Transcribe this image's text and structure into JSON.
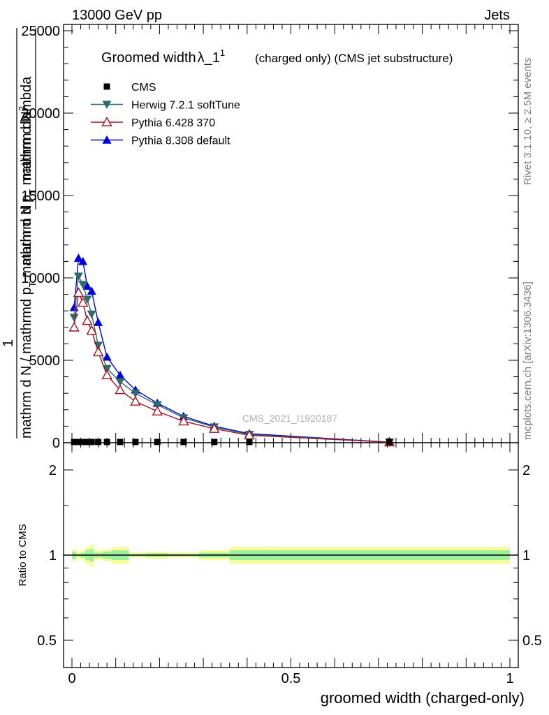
{
  "header": {
    "left": "13000 GeV pp",
    "right": "Jets"
  },
  "plot_title": {
    "main": "Groomed width",
    "lambda": "λ_1",
    "superscript": "1",
    "suffix": "(charged only) (CMS jet substructure)"
  },
  "side_text": {
    "rivet": "Rivet 3.1.10, ≥ 2.5M events",
    "mcplots": "mcplots.cern.ch [arXiv:1306.3436]"
  },
  "watermark": "CMS_2021_I1920187",
  "yaxis_main": {
    "frac_line1": "mathrm d",
    "frac_line1_b": "N",
    "frac_line1_sup": "2",
    "frac_line2": "mathrm d p",
    "frac_line2_sub": "T",
    "frac_line2_b": " mathrm d lambda",
    "outer_num": "1",
    "outer_den": "mathrm d N / mathrmd p",
    "outer_den_sub": "T",
    "outer_den_b": " mathrm d N",
    "ticks": [
      "0",
      "5000",
      "10000",
      "15000",
      "20000",
      "25000"
    ]
  },
  "yaxis_ratio": {
    "label": "Ratio to CMS",
    "ticks_left": [
      "0.5",
      "1",
      "2"
    ],
    "ticks_right": [
      "0.5",
      "1",
      "2"
    ]
  },
  "xaxis": {
    "label": "groomed width (charged-only)",
    "ticks": [
      "0",
      "0.5",
      "1"
    ]
  },
  "legend": [
    {
      "name": "CMS",
      "color": "#000000",
      "marker": "square"
    },
    {
      "name": "Herwig 7.2.1 softTune",
      "color": "#2e6b6b",
      "marker": "triangle-down"
    },
    {
      "name": "Pythia 6.428 370",
      "color": "#a01020",
      "marker": "triangle-open"
    },
    {
      "name": "Pythia 8.308 default",
      "color": "#0000dd",
      "marker": "triangle-up"
    }
  ],
  "chart_data": [
    {
      "type": "line",
      "xlim": [
        0,
        1
      ],
      "ylim": [
        0,
        25000
      ],
      "legend_placement": "top-left",
      "series": [
        {
          "name": "CMS",
          "x": [
            0.005,
            0.015,
            0.025,
            0.035,
            0.045,
            0.06,
            0.08,
            0.11,
            0.145,
            0.195,
            0.255,
            0.325,
            0.405,
            0.725
          ],
          "y": [
            0,
            0,
            0,
            0,
            0,
            0,
            0,
            0,
            0,
            0,
            0,
            0,
            0,
            0
          ]
        },
        {
          "name": "Herwig 7.2.1 softTune",
          "x": [
            0.005,
            0.015,
            0.025,
            0.035,
            0.045,
            0.06,
            0.08,
            0.11,
            0.145,
            0.195,
            0.255,
            0.325,
            0.405,
            0.725
          ],
          "y": [
            7600,
            10100,
            9600,
            8700,
            7800,
            5900,
            4500,
            3700,
            3000,
            2300,
            1500,
            950,
            500,
            30
          ]
        },
        {
          "name": "Pythia 6.428 370",
          "x": [
            0.005,
            0.015,
            0.025,
            0.035,
            0.045,
            0.06,
            0.08,
            0.11,
            0.145,
            0.195,
            0.255,
            0.325,
            0.405,
            0.725
          ],
          "y": [
            7000,
            9100,
            8500,
            7400,
            6800,
            5500,
            4100,
            3200,
            2500,
            1900,
            1300,
            850,
            450,
            30
          ]
        },
        {
          "name": "Pythia 8.308 default",
          "x": [
            0.005,
            0.015,
            0.025,
            0.035,
            0.045,
            0.06,
            0.08,
            0.11,
            0.145,
            0.195,
            0.255,
            0.325,
            0.405,
            0.725
          ],
          "y": [
            8200,
            11200,
            11000,
            9500,
            9200,
            7300,
            5200,
            4100,
            3200,
            2400,
            1600,
            1000,
            550,
            30
          ]
        }
      ]
    },
    {
      "type": "area",
      "ylabel": "Ratio to CMS",
      "ylim": [
        0.4,
        2.3
      ],
      "log_scale_y": true,
      "bins": [
        0,
        0.01,
        0.02,
        0.03,
        0.04,
        0.05,
        0.07,
        0.09,
        0.13,
        0.17,
        0.22,
        0.29,
        0.36,
        0.45,
        1.0
      ],
      "band_outer": [
        [
          0.95,
          1.05
        ],
        [
          0.97,
          1.03
        ],
        [
          0.96,
          1.04
        ],
        [
          0.93,
          1.07
        ],
        [
          0.91,
          1.09
        ],
        [
          0.96,
          1.04
        ],
        [
          0.95,
          1.05
        ],
        [
          0.93,
          1.07
        ],
        [
          0.98,
          1.02
        ],
        [
          0.97,
          1.03
        ],
        [
          0.98,
          1.02
        ],
        [
          0.96,
          1.04
        ],
        [
          0.93,
          1.07
        ],
        [
          0.93,
          1.07
        ]
      ],
      "band_inner": [
        [
          0.97,
          1.03
        ],
        [
          0.99,
          1.01
        ],
        [
          0.98,
          1.02
        ],
        [
          0.96,
          1.04
        ],
        [
          0.95,
          1.05
        ],
        [
          0.98,
          1.02
        ],
        [
          0.97,
          1.03
        ],
        [
          0.96,
          1.04
        ],
        [
          0.99,
          1.01
        ],
        [
          0.985,
          1.015
        ],
        [
          0.99,
          1.01
        ],
        [
          0.98,
          1.02
        ],
        [
          0.96,
          1.04
        ],
        [
          0.96,
          1.04
        ]
      ],
      "reference_line": 1,
      "colors": {
        "outer": "#fbfb9e",
        "inner": "#9cf29c"
      }
    }
  ]
}
